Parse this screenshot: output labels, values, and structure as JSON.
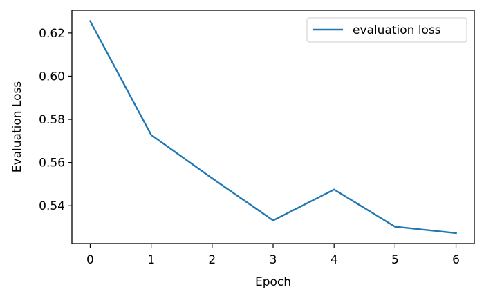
{
  "chart_data": {
    "type": "line",
    "title": "",
    "xlabel": "Epoch",
    "ylabel": "Evaluation Loss",
    "xlim": [
      -0.3,
      6.3
    ],
    "ylim": [
      0.5225,
      0.6305
    ],
    "x_ticks": [
      0,
      1,
      2,
      3,
      4,
      5,
      6
    ],
    "x_tick_labels": [
      "0",
      "1",
      "2",
      "3",
      "4",
      "5",
      "6"
    ],
    "y_ticks": [
      0.54,
      0.56,
      0.58,
      0.6,
      0.62
    ],
    "y_tick_labels": [
      "0.54",
      "0.56",
      "0.58",
      "0.60",
      "0.62"
    ],
    "grid": false,
    "legend": "top-right",
    "series": [
      {
        "name": "evaluation loss",
        "color": "#1f77b4",
        "x": [
          0,
          1,
          2,
          3,
          4,
          5,
          6
        ],
        "values": [
          0.6255,
          0.5728,
          0.5527,
          0.5332,
          0.5475,
          0.5303,
          0.5273
        ]
      }
    ]
  }
}
